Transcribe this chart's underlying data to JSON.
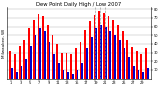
{
  "title": "Dew Point Daily High / Low 2007",
  "ylabel_left": "Milwaukee, WI",
  "highs": [
    32,
    28,
    38,
    45,
    58,
    68,
    75,
    72,
    62,
    50,
    40,
    30,
    30,
    28,
    35,
    42,
    56,
    66,
    73,
    78,
    76,
    72,
    68,
    62,
    55,
    45,
    36,
    32,
    28,
    35
  ],
  "lows": [
    12,
    8,
    15,
    22,
    38,
    50,
    58,
    55,
    42,
    28,
    18,
    10,
    8,
    5,
    10,
    18,
    35,
    48,
    58,
    62,
    60,
    55,
    50,
    45,
    35,
    25,
    14,
    10,
    8,
    12
  ],
  "bar_width": 0.38,
  "high_color": "#ff0000",
  "low_color": "#0000cc",
  "background_color": "#ffffff",
  "grid_color": "#aaaaaa",
  "yticks": [
    10,
    20,
    30,
    40,
    50,
    60,
    70,
    80
  ],
  "ylim": [
    0,
    82
  ],
  "title_fontsize": 3.8,
  "tick_fontsize": 2.5,
  "ylabel_fontsize": 3.0,
  "dashed_line_indices": [
    18,
    19,
    20
  ],
  "x_tick_step": 2
}
